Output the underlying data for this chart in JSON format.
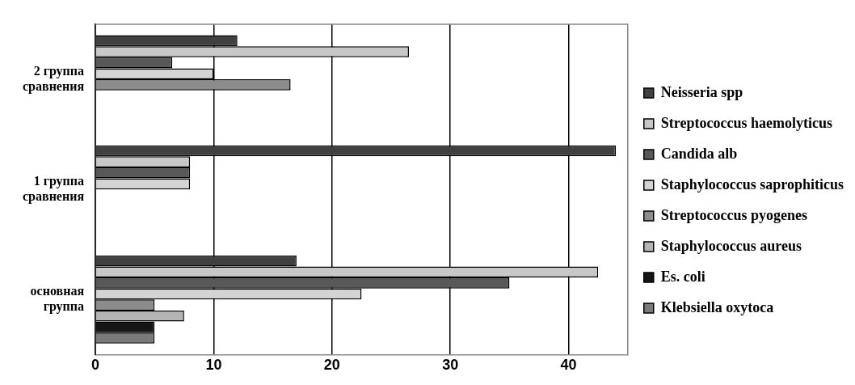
{
  "chart_data": {
    "type": "bar",
    "orientation": "horizontal",
    "categories": [
      "2 группа сравнения",
      "1 группа сравнения",
      "основная группа"
    ],
    "series": [
      {
        "name": "Neisseria spp",
        "color": "#404040",
        "values": [
          12,
          44,
          17
        ]
      },
      {
        "name": "Streptococcus haemolyticus",
        "color": "#c8c8c8",
        "values": [
          26.5,
          8,
          42.5
        ]
      },
      {
        "name": "Candida alb",
        "color": "#585858",
        "values": [
          6.5,
          8,
          35
        ]
      },
      {
        "name": "Staphylococcus saprophiticus",
        "color": "#d4d4d4",
        "values": [
          10,
          8,
          22.5
        ]
      },
      {
        "name": "Streptococcus pyogenes",
        "color": "#8c8c8c",
        "values": [
          16.5,
          0,
          5
        ]
      },
      {
        "name": "Staphylococcus aureus",
        "color": "#b4b4b4",
        "values": [
          0,
          0,
          7.5
        ]
      },
      {
        "name": "Es. coli",
        "color": "#151515",
        "values": [
          0,
          0,
          5
        ]
      },
      {
        "name": "Klebsiella oxytoca",
        "color": "#7a7a7a",
        "values": [
          0,
          0,
          5
        ]
      }
    ],
    "xlim": [
      0,
      45
    ],
    "xticks": [
      0,
      10,
      20,
      30,
      40
    ],
    "grid": "x",
    "legend": "right"
  }
}
